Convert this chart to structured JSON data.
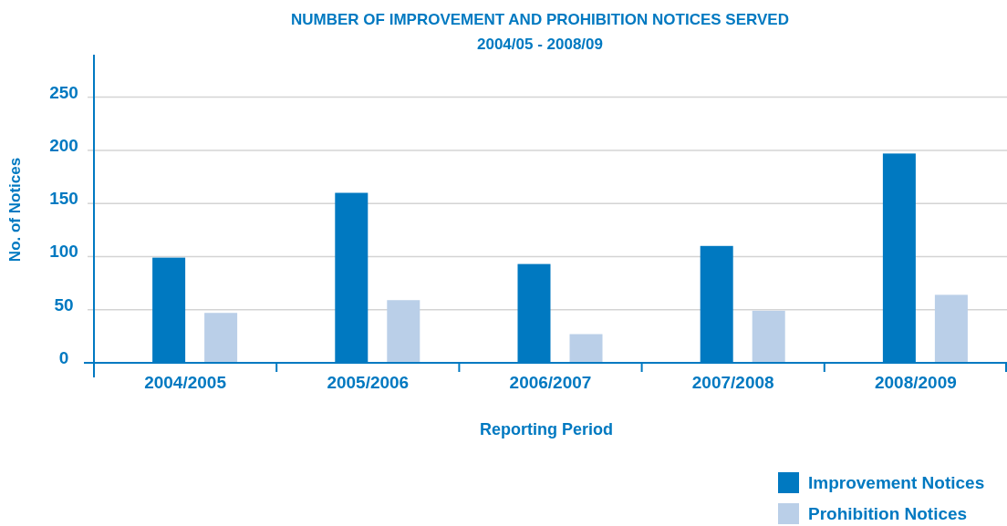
{
  "chart_data": {
    "type": "bar",
    "title": "NUMBER OF IMPROVEMENT AND PROHIBITION NOTICES SERVED",
    "subtitle": "2004/05 - 2008/09",
    "xlabel": "Reporting Period",
    "ylabel": "No. of Notices",
    "categories": [
      "2004/2005",
      "2005/2006",
      "2006/2007",
      "2007/2008",
      "2008/2009"
    ],
    "series": [
      {
        "name": "Improvement Notices",
        "color": "#0079c1",
        "values": [
          99,
          160,
          93,
          110,
          197
        ]
      },
      {
        "name": "Prohibition Notices",
        "color": "#bacfe8",
        "values": [
          47,
          59,
          27,
          49,
          64
        ]
      }
    ],
    "ylim": [
      0,
      290
    ],
    "yticks": [
      0,
      50,
      100,
      150,
      200,
      250
    ],
    "grid": "y",
    "legend": "bottom right"
  }
}
